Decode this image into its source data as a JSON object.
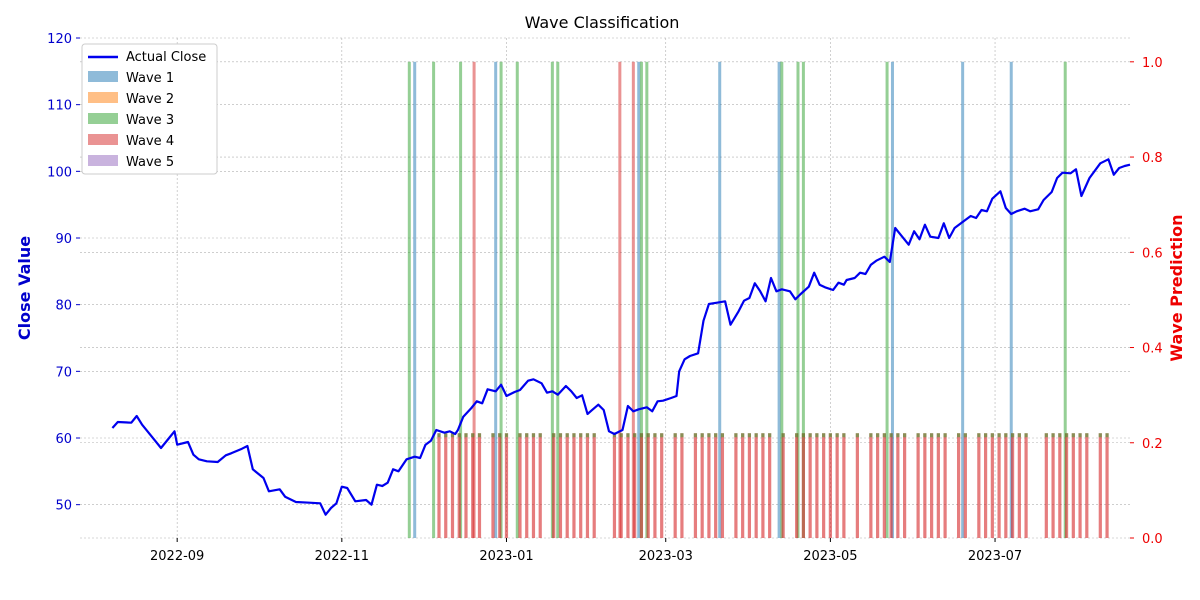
{
  "chart_data": {
    "type": "line",
    "title": "Wave Classification",
    "y_left_label": "Close Value",
    "y_right_label": "Wave Prediction",
    "y_left_ticks": [
      50,
      60,
      70,
      80,
      90,
      100,
      110,
      120
    ],
    "y_right_ticks": [
      "0.0",
      "0.2",
      "0.4",
      "0.6",
      "0.8",
      "1.0"
    ],
    "x_ticks": [
      "2022-09",
      "2022-11",
      "2023-01",
      "2023-03",
      "2023-05",
      "2023-07"
    ],
    "x_range": [
      "2022-07-27",
      "2023-08-20"
    ],
    "y_left_range": [
      45,
      120
    ],
    "y_right_range": [
      0,
      1.05
    ],
    "grid": true,
    "legend_position": "top-left",
    "colors": {
      "actual_close": "#0000ee",
      "wave_1": "#1f77b4",
      "wave_2": "#ff7f0e",
      "wave_3": "#2ca02c",
      "wave_4": "#d62728",
      "wave_5": "#9467bd",
      "left_axis": "#0000cc",
      "right_axis": "#ee0000"
    },
    "legend": [
      "Actual Close",
      "Wave 1",
      "Wave 2",
      "Wave 3",
      "Wave 4",
      "Wave 5"
    ],
    "series": [
      {
        "name": "Actual Close",
        "points": [
          [
            "2022-08-08",
            61.5
          ],
          [
            "2022-08-10",
            62.4
          ],
          [
            "2022-08-15",
            62.3
          ],
          [
            "2022-08-17",
            63.3
          ],
          [
            "2022-08-19",
            62.0
          ],
          [
            "2022-08-24",
            59.5
          ],
          [
            "2022-08-26",
            58.5
          ],
          [
            "2022-08-29",
            60.0
          ],
          [
            "2022-08-31",
            61.0
          ],
          [
            "2022-09-01",
            59.0
          ],
          [
            "2022-09-05",
            59.4
          ],
          [
            "2022-09-07",
            57.5
          ],
          [
            "2022-09-09",
            56.8
          ],
          [
            "2022-09-12",
            56.5
          ],
          [
            "2022-09-16",
            56.4
          ],
          [
            "2022-09-19",
            57.4
          ],
          [
            "2022-09-21",
            57.7
          ],
          [
            "2022-09-25",
            58.4
          ],
          [
            "2022-09-27",
            58.8
          ],
          [
            "2022-09-29",
            55.3
          ],
          [
            "2022-10-03",
            54.0
          ],
          [
            "2022-10-05",
            52.0
          ],
          [
            "2022-10-09",
            52.3
          ],
          [
            "2022-10-11",
            51.2
          ],
          [
            "2022-10-15",
            50.4
          ],
          [
            "2022-10-20",
            50.3
          ],
          [
            "2022-10-24",
            50.2
          ],
          [
            "2022-10-26",
            48.5
          ],
          [
            "2022-10-28",
            49.5
          ],
          [
            "2022-10-30",
            50.2
          ],
          [
            "2022-11-01",
            52.7
          ],
          [
            "2022-11-03",
            52.5
          ],
          [
            "2022-11-06",
            50.5
          ],
          [
            "2022-11-10",
            50.7
          ],
          [
            "2022-11-12",
            50.0
          ],
          [
            "2022-11-14",
            53.0
          ],
          [
            "2022-11-16",
            52.8
          ],
          [
            "2022-11-18",
            53.3
          ],
          [
            "2022-11-20",
            55.3
          ],
          [
            "2022-11-22",
            55.0
          ],
          [
            "2022-11-25",
            56.8
          ],
          [
            "2022-11-28",
            57.2
          ],
          [
            "2022-11-30",
            57.0
          ],
          [
            "2022-12-02",
            59.0
          ],
          [
            "2022-12-04",
            59.6
          ],
          [
            "2022-12-06",
            61.2
          ],
          [
            "2022-12-09",
            60.8
          ],
          [
            "2022-12-11",
            61.0
          ],
          [
            "2022-12-13",
            60.6
          ],
          [
            "2022-12-14",
            61.2
          ],
          [
            "2022-12-16",
            63.2
          ],
          [
            "2022-12-19",
            64.5
          ],
          [
            "2022-12-21",
            65.5
          ],
          [
            "2022-12-23",
            65.2
          ],
          [
            "2022-12-25",
            67.3
          ],
          [
            "2022-12-28",
            67.0
          ],
          [
            "2022-12-30",
            68.0
          ],
          [
            "2023-01-01",
            66.3
          ],
          [
            "2023-01-04",
            66.9
          ],
          [
            "2023-01-06",
            67.2
          ],
          [
            "2023-01-09",
            68.6
          ],
          [
            "2023-01-11",
            68.8
          ],
          [
            "2023-01-14",
            68.2
          ],
          [
            "2023-01-16",
            66.8
          ],
          [
            "2023-01-18",
            67.0
          ],
          [
            "2023-01-20",
            66.5
          ],
          [
            "2023-01-23",
            67.8
          ],
          [
            "2023-01-25",
            67.0
          ],
          [
            "2023-01-27",
            66.0
          ],
          [
            "2023-01-29",
            66.4
          ],
          [
            "2023-01-31",
            63.6
          ],
          [
            "2023-02-02",
            64.3
          ],
          [
            "2023-02-04",
            65.0
          ],
          [
            "2023-02-06",
            64.2
          ],
          [
            "2023-02-08",
            61.0
          ],
          [
            "2023-02-10",
            60.6
          ],
          [
            "2023-02-13",
            61.2
          ],
          [
            "2023-02-15",
            64.8
          ],
          [
            "2023-02-17",
            64.0
          ],
          [
            "2023-02-19",
            64.3
          ],
          [
            "2023-02-22",
            64.6
          ],
          [
            "2023-02-24",
            64.0
          ],
          [
            "2023-02-26",
            65.5
          ],
          [
            "2023-02-28",
            65.6
          ],
          [
            "2023-03-03",
            66.0
          ],
          [
            "2023-03-05",
            66.3
          ],
          [
            "2023-03-06",
            70.0
          ],
          [
            "2023-03-08",
            71.8
          ],
          [
            "2023-03-10",
            72.3
          ],
          [
            "2023-03-13",
            72.7
          ],
          [
            "2023-03-15",
            77.6
          ],
          [
            "2023-03-17",
            80.1
          ],
          [
            "2023-03-20",
            80.3
          ],
          [
            "2023-03-23",
            80.5
          ],
          [
            "2023-03-25",
            77.0
          ],
          [
            "2023-03-28",
            79.0
          ],
          [
            "2023-03-30",
            80.6
          ],
          [
            "2023-04-01",
            81.0
          ],
          [
            "2023-04-03",
            83.2
          ],
          [
            "2023-04-05",
            82.0
          ],
          [
            "2023-04-07",
            80.5
          ],
          [
            "2023-04-09",
            84.0
          ],
          [
            "2023-04-11",
            82.0
          ],
          [
            "2023-04-13",
            82.3
          ],
          [
            "2023-04-16",
            82.0
          ],
          [
            "2023-04-18",
            80.8
          ],
          [
            "2023-04-20",
            81.6
          ],
          [
            "2023-04-23",
            82.7
          ],
          [
            "2023-04-25",
            84.8
          ],
          [
            "2023-04-27",
            83.0
          ],
          [
            "2023-04-29",
            82.6
          ],
          [
            "2023-05-02",
            82.2
          ],
          [
            "2023-05-04",
            83.3
          ],
          [
            "2023-05-06",
            83.0
          ],
          [
            "2023-05-07",
            83.7
          ],
          [
            "2023-05-10",
            84.0
          ],
          [
            "2023-05-12",
            84.8
          ],
          [
            "2023-05-14",
            84.6
          ],
          [
            "2023-05-16",
            86.0
          ],
          [
            "2023-05-18",
            86.6
          ],
          [
            "2023-05-21",
            87.2
          ],
          [
            "2023-05-23",
            86.4
          ],
          [
            "2023-05-25",
            91.5
          ],
          [
            "2023-05-27",
            90.5
          ],
          [
            "2023-05-30",
            89.0
          ],
          [
            "2023-06-01",
            91.0
          ],
          [
            "2023-06-03",
            89.8
          ],
          [
            "2023-06-05",
            92.0
          ],
          [
            "2023-06-07",
            90.2
          ],
          [
            "2023-06-10",
            90.0
          ],
          [
            "2023-06-12",
            92.2
          ],
          [
            "2023-06-14",
            90.0
          ],
          [
            "2023-06-16",
            91.5
          ],
          [
            "2023-06-19",
            92.4
          ],
          [
            "2023-06-22",
            93.3
          ],
          [
            "2023-06-24",
            93.0
          ],
          [
            "2023-06-26",
            94.2
          ],
          [
            "2023-06-28",
            94.0
          ],
          [
            "2023-06-30",
            95.9
          ],
          [
            "2023-07-03",
            97.0
          ],
          [
            "2023-07-05",
            94.5
          ],
          [
            "2023-07-07",
            93.6
          ],
          [
            "2023-07-09",
            94.0
          ],
          [
            "2023-07-12",
            94.4
          ],
          [
            "2023-07-14",
            94.0
          ],
          [
            "2023-07-17",
            94.3
          ],
          [
            "2023-07-19",
            95.7
          ],
          [
            "2023-07-22",
            96.9
          ],
          [
            "2023-07-24",
            99.0
          ],
          [
            "2023-07-26",
            99.8
          ],
          [
            "2023-07-29",
            99.7
          ],
          [
            "2023-07-31",
            100.3
          ],
          [
            "2023-08-02",
            96.3
          ],
          [
            "2023-08-05",
            99.0
          ],
          [
            "2023-08-09",
            101.2
          ],
          [
            "2023-08-12",
            101.8
          ],
          [
            "2023-08-14",
            99.5
          ],
          [
            "2023-08-16",
            100.5
          ],
          [
            "2023-08-18",
            100.8
          ],
          [
            "2023-08-20",
            101.0
          ]
        ]
      }
    ],
    "wave_markers": [
      {
        "date": "2022-11-26",
        "wave": 3
      },
      {
        "date": "2022-11-28",
        "wave": 1
      },
      {
        "date": "2022-12-05",
        "wave": 3
      },
      {
        "date": "2022-12-15",
        "wave": 3
      },
      {
        "date": "2022-12-20",
        "wave": 4
      },
      {
        "date": "2022-12-28",
        "wave": 1
      },
      {
        "date": "2022-12-30",
        "wave": 3
      },
      {
        "date": "2023-01-05",
        "wave": 3
      },
      {
        "date": "2023-01-18",
        "wave": 3
      },
      {
        "date": "2023-01-20",
        "wave": 3
      },
      {
        "date": "2023-02-12",
        "wave": 4
      },
      {
        "date": "2023-02-17",
        "wave": 4
      },
      {
        "date": "2023-02-19",
        "wave": 1
      },
      {
        "date": "2023-02-20",
        "wave": 3
      },
      {
        "date": "2023-02-22",
        "wave": 3
      },
      {
        "date": "2023-03-21",
        "wave": 1
      },
      {
        "date": "2023-04-12",
        "wave": 1
      },
      {
        "date": "2023-04-13",
        "wave": 3
      },
      {
        "date": "2023-04-19",
        "wave": 3
      },
      {
        "date": "2023-04-21",
        "wave": 3
      },
      {
        "date": "2023-05-22",
        "wave": 3
      },
      {
        "date": "2023-05-24",
        "wave": 1
      },
      {
        "date": "2023-06-19",
        "wave": 1
      },
      {
        "date": "2023-07-07",
        "wave": 1
      },
      {
        "date": "2023-07-27",
        "wave": 3
      }
    ]
  }
}
